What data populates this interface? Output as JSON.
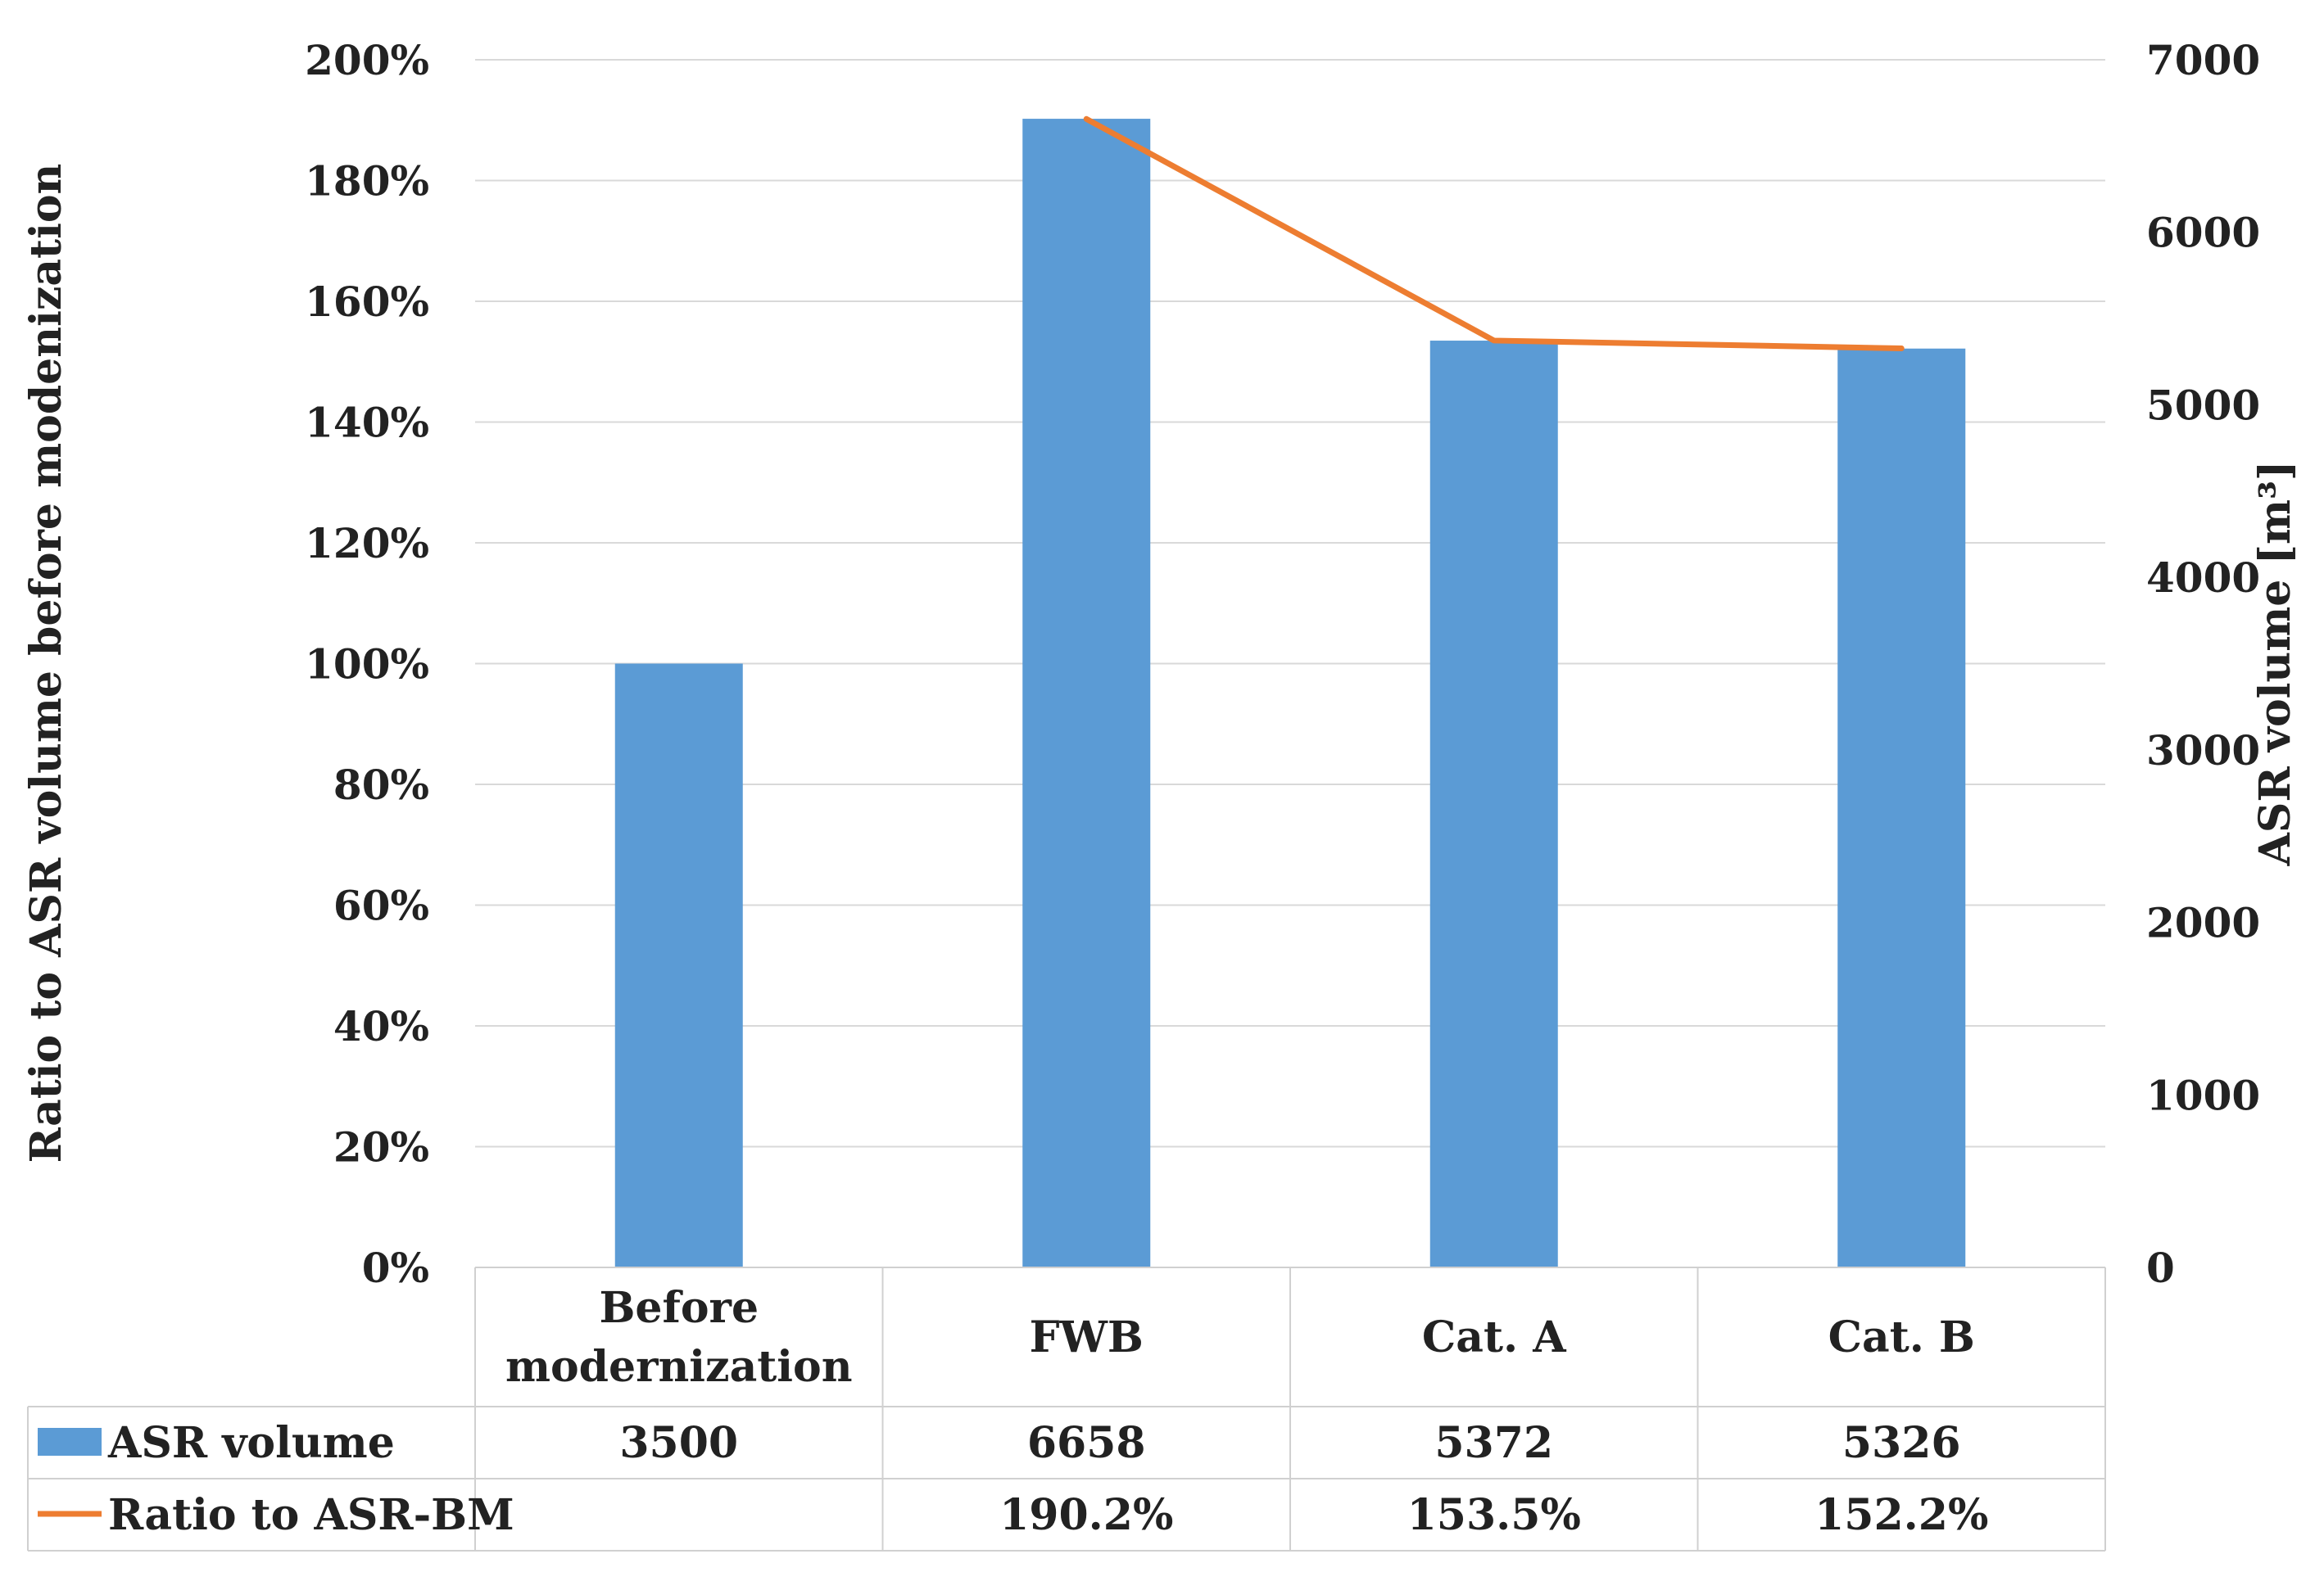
{
  "chart_data": {
    "type": "bar",
    "categories": [
      "Before\nmodernization",
      "FWB",
      "Cat. A",
      "Cat. B"
    ],
    "series": [
      {
        "name": "ASR volume",
        "type": "bar",
        "axis": "right",
        "values": [
          3500,
          6658,
          5372,
          5326
        ],
        "labels": [
          "3500",
          "6658",
          "5372",
          "5326"
        ],
        "color": "#5B9BD5"
      },
      {
        "name": "Ratio to ASR-BM",
        "type": "line",
        "axis": "left",
        "values": [
          null,
          190.2,
          153.5,
          152.2
        ],
        "labels": [
          "",
          "190.2%",
          "153.5%",
          "152.2%"
        ],
        "color": "#ED7D31"
      }
    ],
    "left_axis": {
      "title": "Ratio to ASR volume before modenization",
      "ylim": [
        0,
        200
      ],
      "ticks": [
        "0%",
        "20%",
        "40%",
        "60%",
        "80%",
        "100%",
        "120%",
        "140%",
        "160%",
        "180%",
        "200%"
      ]
    },
    "right_axis": {
      "title": "ASR volume [m³]",
      "ylim": [
        0,
        7000
      ],
      "ticks": [
        "0",
        "1000",
        "2000",
        "3000",
        "4000",
        "5000",
        "6000",
        "7000"
      ]
    },
    "grid": true,
    "legend": "data-table"
  }
}
